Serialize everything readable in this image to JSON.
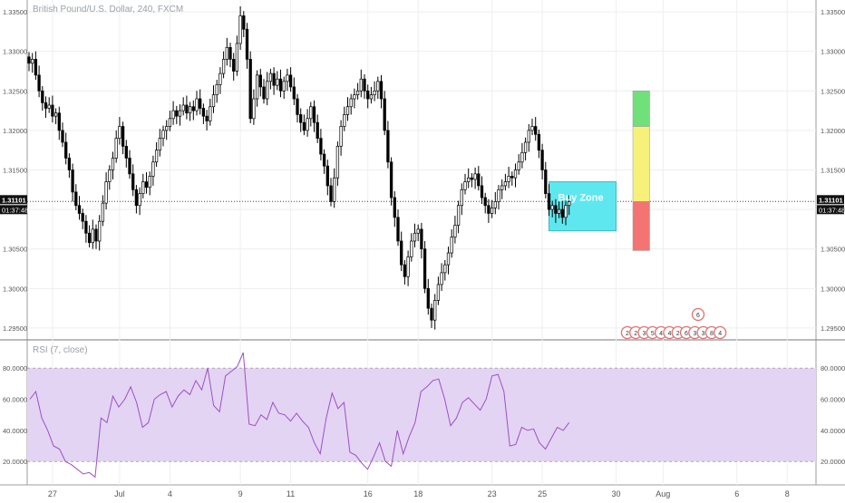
{
  "title": "British Pound/U.S. Dollar, 240, FXCM",
  "rsi_label": "RSI (7, close)",
  "colors": {
    "up_candle": "#ffffff",
    "down_candle": "#000000",
    "wick": "#000000",
    "buy_zone": "#5ee7ef",
    "target_green": "#70e07a",
    "target_yellow": "#f7f17a",
    "stop_red": "#f47474",
    "rsi_line": "#9c4fc7",
    "rsi_band": "#e4d4f3",
    "grid": "#eeeeee",
    "price_badge": "#111111"
  },
  "price_badge": {
    "price": "1.31101",
    "countdown": "01:37:48"
  },
  "chart_data": [
    {
      "type": "candlestick",
      "title": "British Pound/U.S. Dollar, 240, FXCM",
      "ylim": [
        1.2935,
        1.3365
      ],
      "y_ticks": [
        "1.33500",
        "1.33000",
        "1.32500",
        "1.32000",
        "1.31500",
        "1.31000",
        "1.30500",
        "1.30000",
        "1.29500"
      ],
      "y_tick_values": [
        1.335,
        1.33,
        1.325,
        1.32,
        1.315,
        1.31,
        1.305,
        1.3,
        1.295
      ],
      "x_ticks": [
        {
          "label": "27",
          "bar": 7
        },
        {
          "label": "Jul",
          "bar": 27
        },
        {
          "label": "4",
          "bar": 42
        },
        {
          "label": "9",
          "bar": 63
        },
        {
          "label": "11",
          "bar": 78
        },
        {
          "label": "16",
          "bar": 101
        },
        {
          "label": "18",
          "bar": 116
        },
        {
          "label": "23",
          "bar": 138
        },
        {
          "label": "25",
          "bar": 153
        },
        {
          "label": "30",
          "bar": 175
        },
        {
          "label": "Aug",
          "bar": 189
        },
        {
          "label": "6",
          "bar": 211
        },
        {
          "label": "8",
          "bar": 226
        }
      ],
      "closes": [
        1.3285,
        1.329,
        1.327,
        1.325,
        1.3235,
        1.3228,
        1.3232,
        1.3218,
        1.3222,
        1.32,
        1.3185,
        1.3165,
        1.315,
        1.3122,
        1.3105,
        1.3095,
        1.3085,
        1.307,
        1.3058,
        1.3075,
        1.306,
        1.3085,
        1.3108,
        1.3135,
        1.315,
        1.3165,
        1.319,
        1.3205,
        1.318,
        1.3165,
        1.3145,
        1.3125,
        1.3105,
        1.312,
        1.3135,
        1.3128,
        1.3142,
        1.316,
        1.3175,
        1.319,
        1.32,
        1.3205,
        1.3215,
        1.3225,
        1.3218,
        1.3225,
        1.3232,
        1.3222,
        1.323,
        1.3225,
        1.324,
        1.3228,
        1.3218,
        1.3212,
        1.323,
        1.3245,
        1.3258,
        1.3272,
        1.329,
        1.3305,
        1.329,
        1.3275,
        1.331,
        1.3345,
        1.3328,
        1.329,
        1.3215,
        1.324,
        1.327,
        1.3255,
        1.324,
        1.3262,
        1.3272,
        1.3257,
        1.3265,
        1.325,
        1.3262,
        1.327,
        1.3255,
        1.324,
        1.322,
        1.321,
        1.32,
        1.3215,
        1.323,
        1.321,
        1.319,
        1.317,
        1.3155,
        1.313,
        1.311,
        1.314,
        1.318,
        1.3205,
        1.322,
        1.323,
        1.324,
        1.3245,
        1.325,
        1.3265,
        1.325,
        1.324,
        1.3245,
        1.325,
        1.3262,
        1.324,
        1.32,
        1.316,
        1.3115,
        1.309,
        1.306,
        1.303,
        1.3015,
        1.304,
        1.306,
        1.307,
        1.3075,
        1.305,
        1.3,
        1.2975,
        1.296,
        1.2985,
        1.3005,
        1.302,
        1.303,
        1.3045,
        1.3065,
        1.308,
        1.3105,
        1.3125,
        1.3135,
        1.314,
        1.3138,
        1.3145,
        1.313,
        1.3115,
        1.3105,
        1.3095,
        1.3102,
        1.311,
        1.3125,
        1.313,
        1.3135,
        1.3142,
        1.314,
        1.315,
        1.316,
        1.3172,
        1.3185,
        1.32,
        1.3205,
        1.3195,
        1.3175,
        1.315,
        1.312,
        1.31,
        1.3105,
        1.3095,
        1.31,
        1.309,
        1.3105,
        1.311
      ],
      "annotations": {
        "buy_zone": {
          "label": "Buy Zone",
          "y_top": 1.3135,
          "y_bottom": 1.3073,
          "bar_from": 155,
          "bar_to": 175
        },
        "target_green": {
          "y_top": 1.325,
          "y_bottom": 1.3205,
          "bar_from": 180,
          "bar_to": 185
        },
        "target_yellow": {
          "y_top": 1.3205,
          "y_bottom": 1.311,
          "bar_from": 180,
          "bar_to": 185
        },
        "stop_red": {
          "y_top": 1.311,
          "y_bottom": 1.3048,
          "bar_from": 180,
          "bar_to": 185
        }
      },
      "event_badges": [
        "6",
        "2",
        "2",
        "3",
        "5",
        "4",
        "4",
        "2",
        "6",
        "3",
        "3",
        "8",
        "4"
      ]
    },
    {
      "type": "line",
      "title": "RSI (7, close)",
      "ylim": [
        5,
        97
      ],
      "y_ticks": [
        "80.0000",
        "60.0000",
        "40.0000",
        "20.0000"
      ],
      "y_tick_values": [
        80,
        60,
        40,
        20
      ],
      "band": [
        20,
        80
      ],
      "values": [
        60,
        65,
        48,
        40,
        30,
        28,
        20,
        18,
        15,
        12,
        13,
        10,
        48,
        45,
        62,
        55,
        60,
        68,
        58,
        42,
        45,
        60,
        63,
        65,
        55,
        62,
        66,
        63,
        72,
        66,
        80,
        56,
        52,
        75,
        78,
        81,
        90,
        44,
        43,
        50,
        47,
        58,
        51,
        50,
        46,
        51,
        46,
        42,
        32,
        25,
        48,
        64,
        54,
        58,
        26,
        24,
        19,
        15,
        23,
        32,
        20,
        17,
        40,
        25,
        36,
        45,
        65,
        68,
        72,
        73,
        60,
        43,
        48,
        58,
        61,
        57,
        53,
        60,
        75,
        76,
        65,
        30,
        31,
        42,
        40,
        41,
        32,
        28,
        35,
        42,
        40,
        45
      ]
    }
  ]
}
